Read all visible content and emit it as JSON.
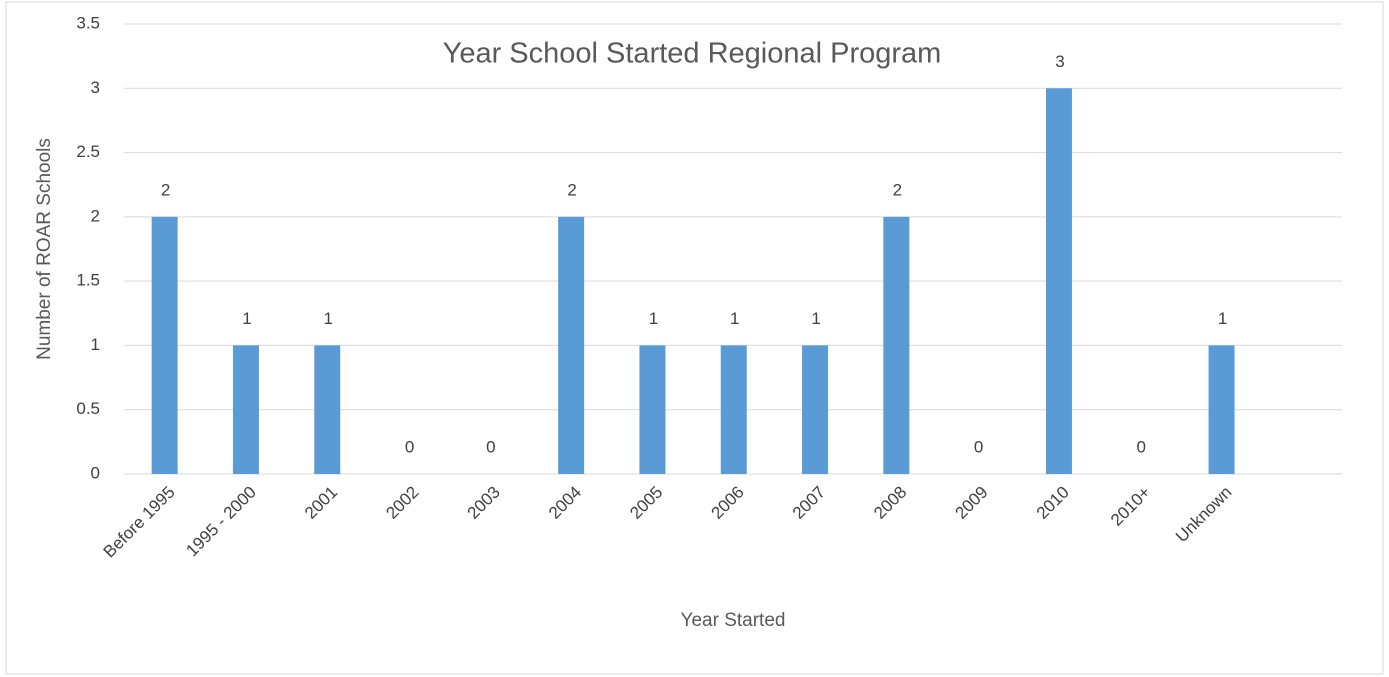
{
  "chart_data": {
    "type": "bar",
    "title": "Year School Started Regional Program",
    "x_label": "Year Started",
    "y_label": "Number of ROAR Schools",
    "categories": [
      "Before 1995",
      "1995 - 2000",
      "2001",
      "2002",
      "2003",
      "2004",
      "2005",
      "2006",
      "2007",
      "2008",
      "2009",
      "2010",
      "2010+",
      "Unknown"
    ],
    "values": [
      2,
      1,
      1,
      0,
      0,
      2,
      1,
      1,
      1,
      2,
      0,
      3,
      0,
      1
    ],
    "color": "#5b9bd5",
    "ylim": [
      0,
      3.5
    ],
    "yticks": [
      0,
      0.5,
      1,
      1.5,
      2,
      2.5,
      3,
      3.5
    ],
    "grid": true
  }
}
